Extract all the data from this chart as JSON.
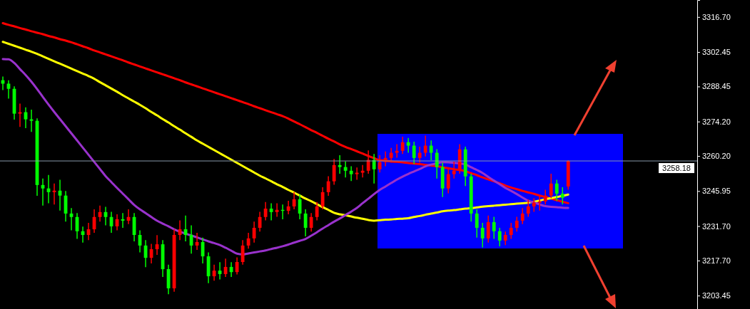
{
  "chart_data": {
    "type": "candlestick",
    "categories": [
      null,
      null,
      null,
      null,
      null,
      null,
      null,
      null,
      null,
      null,
      null,
      null,
      null,
      null,
      null,
      null,
      null,
      null,
      null,
      null,
      null,
      null,
      null,
      null,
      null,
      null,
      null,
      null,
      null,
      null,
      null,
      null,
      null,
      null,
      null,
      null,
      null,
      null,
      null,
      null,
      null,
      null,
      null,
      null,
      null,
      null,
      null,
      null,
      null,
      null,
      null,
      null,
      null,
      null,
      null,
      null,
      null,
      null,
      null,
      null,
      null,
      null,
      null,
      null,
      null,
      null,
      null,
      null,
      null,
      null,
      null,
      null,
      null,
      null,
      null,
      null,
      null,
      null,
      null,
      null,
      null,
      null,
      null,
      null,
      null,
      null,
      null,
      null,
      null,
      null,
      null,
      null,
      null,
      null,
      null,
      null,
      null,
      null,
      null,
      null
    ],
    "ohlc": [
      [
        3291.0,
        3292.5,
        3287.0,
        3289.6
      ],
      [
        3289.6,
        3291.0,
        3283.5,
        3287.5
      ],
      [
        3287.5,
        3288.5,
        3275.0,
        3277.4
      ],
      [
        3277.4,
        3281.5,
        3272.0,
        3278.0
      ],
      [
        3278.0,
        3280.0,
        3271.5,
        3275.1
      ],
      [
        3275.1,
        3279.0,
        3270.0,
        3274.5
      ],
      [
        3274.5,
        3275.5,
        3244.0,
        3248.4
      ],
      [
        3248.4,
        3251.0,
        3240.0,
        3247.0
      ],
      [
        3247.0,
        3252.5,
        3241.0,
        3245.5
      ],
      [
        3245.5,
        3249.0,
        3240.5,
        3246.1
      ],
      [
        3246.1,
        3250.5,
        3238.0,
        3244.1
      ],
      [
        3244.1,
        3246.0,
        3233.5,
        3236.8
      ],
      [
        3236.8,
        3239.0,
        3230.0,
        3235.4
      ],
      [
        3235.4,
        3237.0,
        3226.5,
        3229.6
      ],
      [
        3229.6,
        3231.5,
        3225.0,
        3228.1
      ],
      [
        3228.1,
        3233.0,
        3226.0,
        3230.4
      ],
      [
        3230.4,
        3238.5,
        3229.0,
        3235.4
      ],
      [
        3235.4,
        3240.0,
        3233.5,
        3237.4
      ],
      [
        3237.4,
        3239.5,
        3232.0,
        3235.4
      ],
      [
        3235.4,
        3237.5,
        3229.0,
        3231.6
      ],
      [
        3231.6,
        3236.5,
        3230.0,
        3234.5
      ],
      [
        3234.5,
        3237.0,
        3231.0,
        3233.9
      ],
      [
        3233.9,
        3238.5,
        3232.5,
        3235.4
      ],
      [
        3235.4,
        3237.0,
        3225.5,
        3228.1
      ],
      [
        3228.1,
        3230.0,
        3221.0,
        3223.8
      ],
      [
        3223.8,
        3226.0,
        3215.0,
        3218.8
      ],
      [
        3218.8,
        3224.5,
        3216.5,
        3222.3
      ],
      [
        3222.3,
        3228.0,
        3220.0,
        3224.3
      ],
      [
        3224.3,
        3226.0,
        3211.0,
        3214.2
      ],
      [
        3214.2,
        3216.0,
        3204.0,
        3206.4
      ],
      [
        3206.4,
        3230.5,
        3205.0,
        3228.1
      ],
      [
        3228.1,
        3234.0,
        3226.0,
        3230.4
      ],
      [
        3230.4,
        3236.0,
        3225.5,
        3228.1
      ],
      [
        3228.1,
        3232.0,
        3220.5,
        3223.8
      ],
      [
        3223.8,
        3229.0,
        3222.0,
        3225.2
      ],
      [
        3225.2,
        3227.0,
        3216.5,
        3219.4
      ],
      [
        3219.4,
        3221.0,
        3208.5,
        3211.3
      ],
      [
        3211.3,
        3216.0,
        3209.5,
        3213.6
      ],
      [
        3213.6,
        3217.0,
        3210.0,
        3212.2
      ],
      [
        3212.2,
        3218.5,
        3211.0,
        3215.1
      ],
      [
        3215.1,
        3217.0,
        3211.0,
        3213.0
      ],
      [
        3213.0,
        3219.0,
        3212.0,
        3217.1
      ],
      [
        3217.1,
        3226.0,
        3216.0,
        3223.8
      ],
      [
        3223.8,
        3229.0,
        3222.5,
        3226.7
      ],
      [
        3226.7,
        3233.5,
        3225.0,
        3231.0
      ],
      [
        3231.0,
        3237.5,
        3229.5,
        3235.4
      ],
      [
        3235.4,
        3241.5,
        3234.0,
        3238.8
      ],
      [
        3238.8,
        3241.0,
        3234.0,
        3237.4
      ],
      [
        3237.4,
        3241.0,
        3235.5,
        3238.3
      ],
      [
        3238.3,
        3240.5,
        3234.5,
        3237.9
      ],
      [
        3237.9,
        3242.0,
        3236.5,
        3239.7
      ],
      [
        3239.7,
        3245.5,
        3238.5,
        3242.6
      ],
      [
        3242.6,
        3244.5,
        3234.5,
        3236.8
      ],
      [
        3236.8,
        3238.5,
        3227.5,
        3231.0
      ],
      [
        3231.0,
        3237.0,
        3229.5,
        3235.4
      ],
      [
        3235.4,
        3241.5,
        3234.0,
        3239.7
      ],
      [
        3239.7,
        3247.5,
        3238.5,
        3245.5
      ],
      [
        3245.5,
        3252.0,
        3244.0,
        3249.9
      ],
      [
        3249.9,
        3259.0,
        3248.5,
        3256.5
      ],
      [
        3256.5,
        3260.5,
        3253.0,
        3255.7
      ],
      [
        3255.7,
        3258.0,
        3251.5,
        3254.2
      ],
      [
        3254.2,
        3256.0,
        3250.0,
        3252.8
      ],
      [
        3252.8,
        3255.5,
        3250.5,
        3253.4
      ],
      [
        3253.4,
        3256.5,
        3251.5,
        3254.2
      ],
      [
        3254.2,
        3262.5,
        3253.0,
        3258.6
      ],
      [
        3258.6,
        3261.0,
        3249.0,
        3254.8
      ],
      [
        3254.8,
        3260.5,
        3253.5,
        3257.7
      ],
      [
        3257.7,
        3262.0,
        3256.0,
        3259.4
      ],
      [
        3259.4,
        3263.5,
        3257.5,
        3261.5
      ],
      [
        3261.5,
        3265.0,
        3259.5,
        3262.3
      ],
      [
        3262.3,
        3268.0,
        3261.0,
        3265.8
      ],
      [
        3265.8,
        3267.5,
        3261.5,
        3264.4
      ],
      [
        3264.4,
        3266.0,
        3257.0,
        3259.4
      ],
      [
        3259.4,
        3264.0,
        3257.5,
        3261.5
      ],
      [
        3261.5,
        3268.5,
        3260.0,
        3264.4
      ],
      [
        3264.4,
        3266.5,
        3258.5,
        3261.5
      ],
      [
        3261.5,
        3263.0,
        3251.0,
        3255.7
      ],
      [
        3255.7,
        3257.5,
        3243.5,
        3247.0
      ],
      [
        3247.0,
        3255.5,
        3245.0,
        3252.8
      ],
      [
        3252.8,
        3258.0,
        3251.0,
        3254.2
      ],
      [
        3254.2,
        3265.0,
        3253.0,
        3262.9
      ],
      [
        3262.9,
        3264.0,
        3248.0,
        3251.9
      ],
      [
        3251.9,
        3253.0,
        3233.5,
        3236.8
      ],
      [
        3236.8,
        3238.5,
        3227.0,
        3231.0
      ],
      [
        3231.0,
        3233.0,
        3223.0,
        3226.7
      ],
      [
        3226.7,
        3236.0,
        3225.0,
        3233.3
      ],
      [
        3233.3,
        3235.5,
        3226.5,
        3229.6
      ],
      [
        3229.6,
        3231.0,
        3223.5,
        3225.8
      ],
      [
        3225.8,
        3229.5,
        3224.0,
        3228.1
      ],
      [
        3228.1,
        3233.0,
        3226.5,
        3231.0
      ],
      [
        3231.0,
        3235.5,
        3229.5,
        3233.9
      ],
      [
        3233.9,
        3239.0,
        3232.5,
        3236.8
      ],
      [
        3236.8,
        3242.5,
        3235.5,
        3239.7
      ],
      [
        3239.7,
        3243.0,
        3237.5,
        3241.2
      ],
      [
        3241.2,
        3244.0,
        3238.0,
        3241.7
      ],
      [
        3241.7,
        3246.5,
        3240.5,
        3244.1
      ],
      [
        3244.1,
        3253.0,
        3243.0,
        3249.0
      ],
      [
        3249.0,
        3250.5,
        3242.0,
        3244.9
      ],
      [
        3244.9,
        3247.5,
        3240.5,
        3243.2
      ],
      [
        3247.8,
        3258.5,
        3246.5,
        3258.18
      ]
    ],
    "series": [
      {
        "type": "line",
        "color": "#ff0000",
        "values": [
          3314.2,
          3313.5,
          3312.9,
          3312.2,
          3311.6,
          3310.9,
          3310.3,
          3309.7,
          3309.0,
          3308.4,
          3307.7,
          3307.1,
          3306.4,
          3305.6,
          3304.8,
          3304.0,
          3303.1,
          3302.3,
          3301.5,
          3300.7,
          3299.9,
          3299.1,
          3298.2,
          3297.4,
          3296.6,
          3295.8,
          3295.0,
          3294.2,
          3293.4,
          3292.6,
          3291.8,
          3291.0,
          3290.1,
          3289.3,
          3288.5,
          3287.7,
          3286.9,
          3286.1,
          3285.3,
          3284.5,
          3283.7,
          3282.9,
          3282.1,
          3281.3,
          3280.4,
          3279.6,
          3278.8,
          3278.0,
          3277.2,
          3276.4,
          3275.4,
          3274.2,
          3273.1,
          3271.9,
          3270.7,
          3269.6,
          3268.4,
          3267.2,
          3266.1,
          3264.9,
          3263.9,
          3263.0,
          3262.1,
          3261.2,
          3260.2,
          3259.3,
          3258.5,
          3258.3,
          3258.0,
          3257.8,
          3257.6,
          3257.3,
          3257.1,
          3256.9,
          3256.6,
          3256.3,
          3256.0,
          3255.6,
          3255.2,
          3254.8,
          3254.5,
          3254.0,
          3253.2,
          3252.4,
          3251.5,
          3250.7,
          3249.9,
          3249.1,
          3248.2,
          3247.4,
          3246.7,
          3246.0,
          3245.4,
          3244.8,
          3244.1,
          3243.5,
          3242.9,
          3242.2,
          3241.6,
          3241.0
        ]
      },
      {
        "type": "line",
        "color": "#ffff00",
        "values": [
          3306.6,
          3305.8,
          3305.0,
          3304.2,
          3303.4,
          3302.6,
          3301.7,
          3300.7,
          3299.7,
          3298.7,
          3297.7,
          3296.7,
          3295.7,
          3294.7,
          3293.7,
          3292.7,
          3291.6,
          3290.2,
          3288.9,
          3287.6,
          3286.3,
          3284.9,
          3283.6,
          3282.3,
          3281.0,
          3279.6,
          3278.1,
          3276.7,
          3275.2,
          3273.8,
          3272.3,
          3270.9,
          3269.4,
          3268.0,
          3266.5,
          3265.2,
          3263.9,
          3262.6,
          3261.3,
          3260.0,
          3258.7,
          3257.4,
          3256.1,
          3254.8,
          3253.5,
          3252.2,
          3251.1,
          3249.9,
          3248.7,
          3247.6,
          3246.4,
          3245.3,
          3244.1,
          3242.9,
          3241.8,
          3240.6,
          3239.4,
          3238.3,
          3237.1,
          3236.5,
          3236.1,
          3235.6,
          3235.1,
          3234.7,
          3234.2,
          3233.9,
          3234.1,
          3234.3,
          3234.4,
          3234.6,
          3234.7,
          3234.9,
          3235.4,
          3235.8,
          3236.3,
          3236.8,
          3237.2,
          3237.7,
          3238.0,
          3238.2,
          3238.5,
          3238.8,
          3239.0,
          3239.3,
          3239.6,
          3239.8,
          3240.0,
          3240.2,
          3240.4,
          3240.6,
          3240.8,
          3241.0,
          3241.2,
          3241.6,
          3242.1,
          3242.6,
          3243.1,
          3243.5,
          3244.0,
          3244.5
        ]
      },
      {
        "type": "line",
        "color": "#9932cc",
        "values": [
          3299.6,
          3299.5,
          3298.0,
          3295.5,
          3293.1,
          3290.4,
          3287.4,
          3284.2,
          3281.1,
          3278.1,
          3275.2,
          3272.3,
          3269.4,
          3266.5,
          3263.6,
          3260.7,
          3257.8,
          3254.9,
          3252.0,
          3249.6,
          3247.2,
          3244.9,
          3242.6,
          3240.3,
          3238.5,
          3237.0,
          3235.4,
          3233.9,
          3232.7,
          3231.6,
          3230.4,
          3229.4,
          3228.6,
          3227.9,
          3227.1,
          3226.3,
          3225.5,
          3224.8,
          3224.0,
          3222.9,
          3221.7,
          3220.5,
          3220.2,
          3220.6,
          3221.0,
          3221.4,
          3221.8,
          3222.4,
          3222.9,
          3223.5,
          3224.2,
          3225.0,
          3225.7,
          3226.5,
          3227.8,
          3229.2,
          3230.7,
          3232.1,
          3233.5,
          3234.8,
          3236.2,
          3237.6,
          3239.1,
          3241.0,
          3242.8,
          3244.7,
          3246.4,
          3247.8,
          3249.2,
          3250.6,
          3251.8,
          3252.9,
          3253.9,
          3254.9,
          3256.0,
          3256.7,
          3257.2,
          3257.7,
          3257.6,
          3257.4,
          3257.2,
          3256.8,
          3255.6,
          3254.5,
          3253.3,
          3251.7,
          3250.2,
          3248.7,
          3247.2,
          3246.0,
          3244.7,
          3243.3,
          3242.0,
          3241.3,
          3240.5,
          3239.8,
          3239.5,
          3239.4,
          3239.2,
          3239.1
        ]
      }
    ],
    "ylim": [
      3198.0,
      3323.6
    ],
    "yticks": [
      {
        "value": 3316.7,
        "label": "3316.70"
      },
      {
        "value": 3302.45,
        "label": "3302.45"
      },
      {
        "value": 3288.45,
        "label": "3288.45"
      },
      {
        "value": 3274.2,
        "label": "3274.20"
      },
      {
        "value": 3260.2,
        "label": "3260.20"
      },
      {
        "value": 3245.95,
        "label": "3245.95"
      },
      {
        "value": 3231.7,
        "label": "3231.70"
      },
      {
        "value": 3217.7,
        "label": "3217.70"
      },
      {
        "value": 3203.45,
        "label": "3203.45"
      }
    ],
    "tick_labels": "y",
    "ref_lines": [
      {
        "axis": "y",
        "value": 3258.18,
        "label": "3258.18",
        "color": "#8899aa"
      }
    ]
  }
}
